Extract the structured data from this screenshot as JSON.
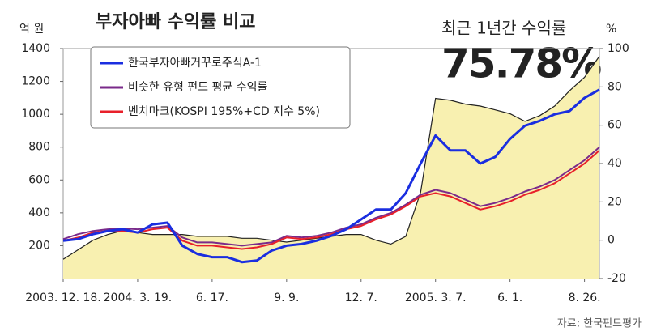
{
  "chart_data": {
    "type": "line",
    "title": "부자아빠 수익률 비교",
    "y_label": "억 원",
    "y2_label": "%",
    "annotation": "최근 1년간 수익률",
    "highlight": "75.78%",
    "source": "자료: 한국펀드평가",
    "categories": [
      "2003. 12. 18.",
      null,
      null,
      null,
      null,
      "2004. 3. 19.",
      null,
      null,
      null,
      null,
      "6. 17.",
      null,
      null,
      null,
      null,
      "9. 9.",
      null,
      null,
      null,
      null,
      "12. 7.",
      null,
      null,
      null,
      null,
      "2005. 3. 7.",
      null,
      null,
      null,
      null,
      "6. 1.",
      null,
      null,
      null,
      null,
      "8. 26.",
      null
    ],
    "ylim": [
      0,
      1400
    ],
    "yticks": [
      200,
      400,
      600,
      800,
      1000,
      1200,
      1400
    ],
    "y2lim": [
      -20,
      100
    ],
    "y2ticks": [
      -20,
      0,
      20,
      40,
      60,
      80,
      100
    ],
    "series": [
      {
        "color": "#f8f0b0",
        "axis": "y2",
        "area": true,
        "values": [
          -10,
          -5,
          0,
          3,
          5,
          4,
          3,
          3,
          3,
          2,
          2,
          2,
          1,
          1,
          0,
          -1,
          0,
          1,
          2,
          3,
          3,
          0,
          -2,
          2,
          25,
          74,
          73,
          71,
          70,
          68,
          66,
          62,
          65,
          70,
          78,
          85,
          96
        ]
      },
      {
        "name": "비슷한 유형 펀드 평균 수익률",
        "color": "#7a2a8a",
        "values": [
          240,
          270,
          290,
          300,
          305,
          300,
          310,
          320,
          250,
          220,
          220,
          210,
          200,
          210,
          220,
          260,
          250,
          260,
          280,
          310,
          330,
          370,
          400,
          450,
          510,
          540,
          520,
          480,
          440,
          460,
          490,
          530,
          560,
          600,
          660,
          720,
          800
        ]
      },
      {
        "name": "벤치마크(KOSPI 195%+CD 지수 5%)",
        "color": "#e8202a",
        "values": [
          230,
          250,
          280,
          290,
          290,
          280,
          300,
          310,
          230,
          200,
          200,
          190,
          180,
          190,
          210,
          250,
          240,
          250,
          270,
          300,
          320,
          360,
          390,
          440,
          500,
          520,
          500,
          460,
          420,
          440,
          470,
          510,
          540,
          580,
          640,
          700,
          780
        ]
      },
      {
        "name": "한국부자아빠거꾸로주식A-1",
        "color": "#1a2ee0",
        "values": [
          230,
          240,
          270,
          290,
          300,
          280,
          330,
          340,
          200,
          150,
          130,
          130,
          100,
          110,
          170,
          200,
          210,
          230,
          260,
          300,
          360,
          420,
          420,
          520,
          700,
          870,
          780,
          780,
          700,
          740,
          850,
          930,
          960,
          1000,
          1020,
          1100,
          1150
        ]
      }
    ],
    "legend_order": [
      3,
      1,
      2
    ]
  }
}
